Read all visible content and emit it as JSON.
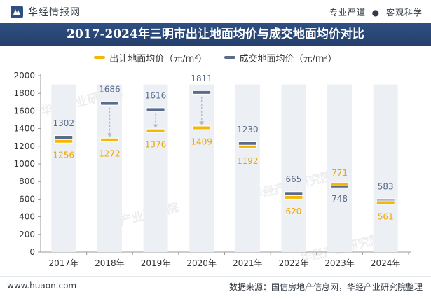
{
  "brand": {
    "name": "华经情报网",
    "icon": "logo-icon"
  },
  "tagline": {
    "left": "专业严谨",
    "separator": "●",
    "right": "客观科学"
  },
  "footer": {
    "website": "www.huaon.com",
    "source": "数据来源：国信房地产信息网，华经产业研究院整理"
  },
  "watermark": "华经产业研究院",
  "colors": {
    "supply": "#f5b800",
    "deal": "#5a6b8c",
    "title_bg": "#2a4776",
    "column_bg": "#eceff3"
  },
  "chart_data": {
    "type": "bar",
    "title": "2017-2024年三明市出让地面均价与成交地面均价对比",
    "xlabel": "",
    "ylabel": "",
    "categories": [
      "2017年",
      "2018年",
      "2019年",
      "2020年",
      "2021年",
      "2022年",
      "2023年",
      "2024年"
    ],
    "ylim": [
      0,
      2000
    ],
    "yticks": [
      0,
      200,
      400,
      600,
      800,
      1000,
      1200,
      1400,
      1600,
      1800,
      2000
    ],
    "series": [
      {
        "name": "出让地面均价（元/m²）",
        "values": [
          1256,
          1272,
          1376,
          1409,
          1192,
          620,
          771,
          561
        ]
      },
      {
        "name": "成交地面均价（元/m²）",
        "values": [
          1302,
          1686,
          1616,
          1811,
          1230,
          665,
          748,
          583
        ]
      }
    ],
    "legend_position": "top-center"
  }
}
